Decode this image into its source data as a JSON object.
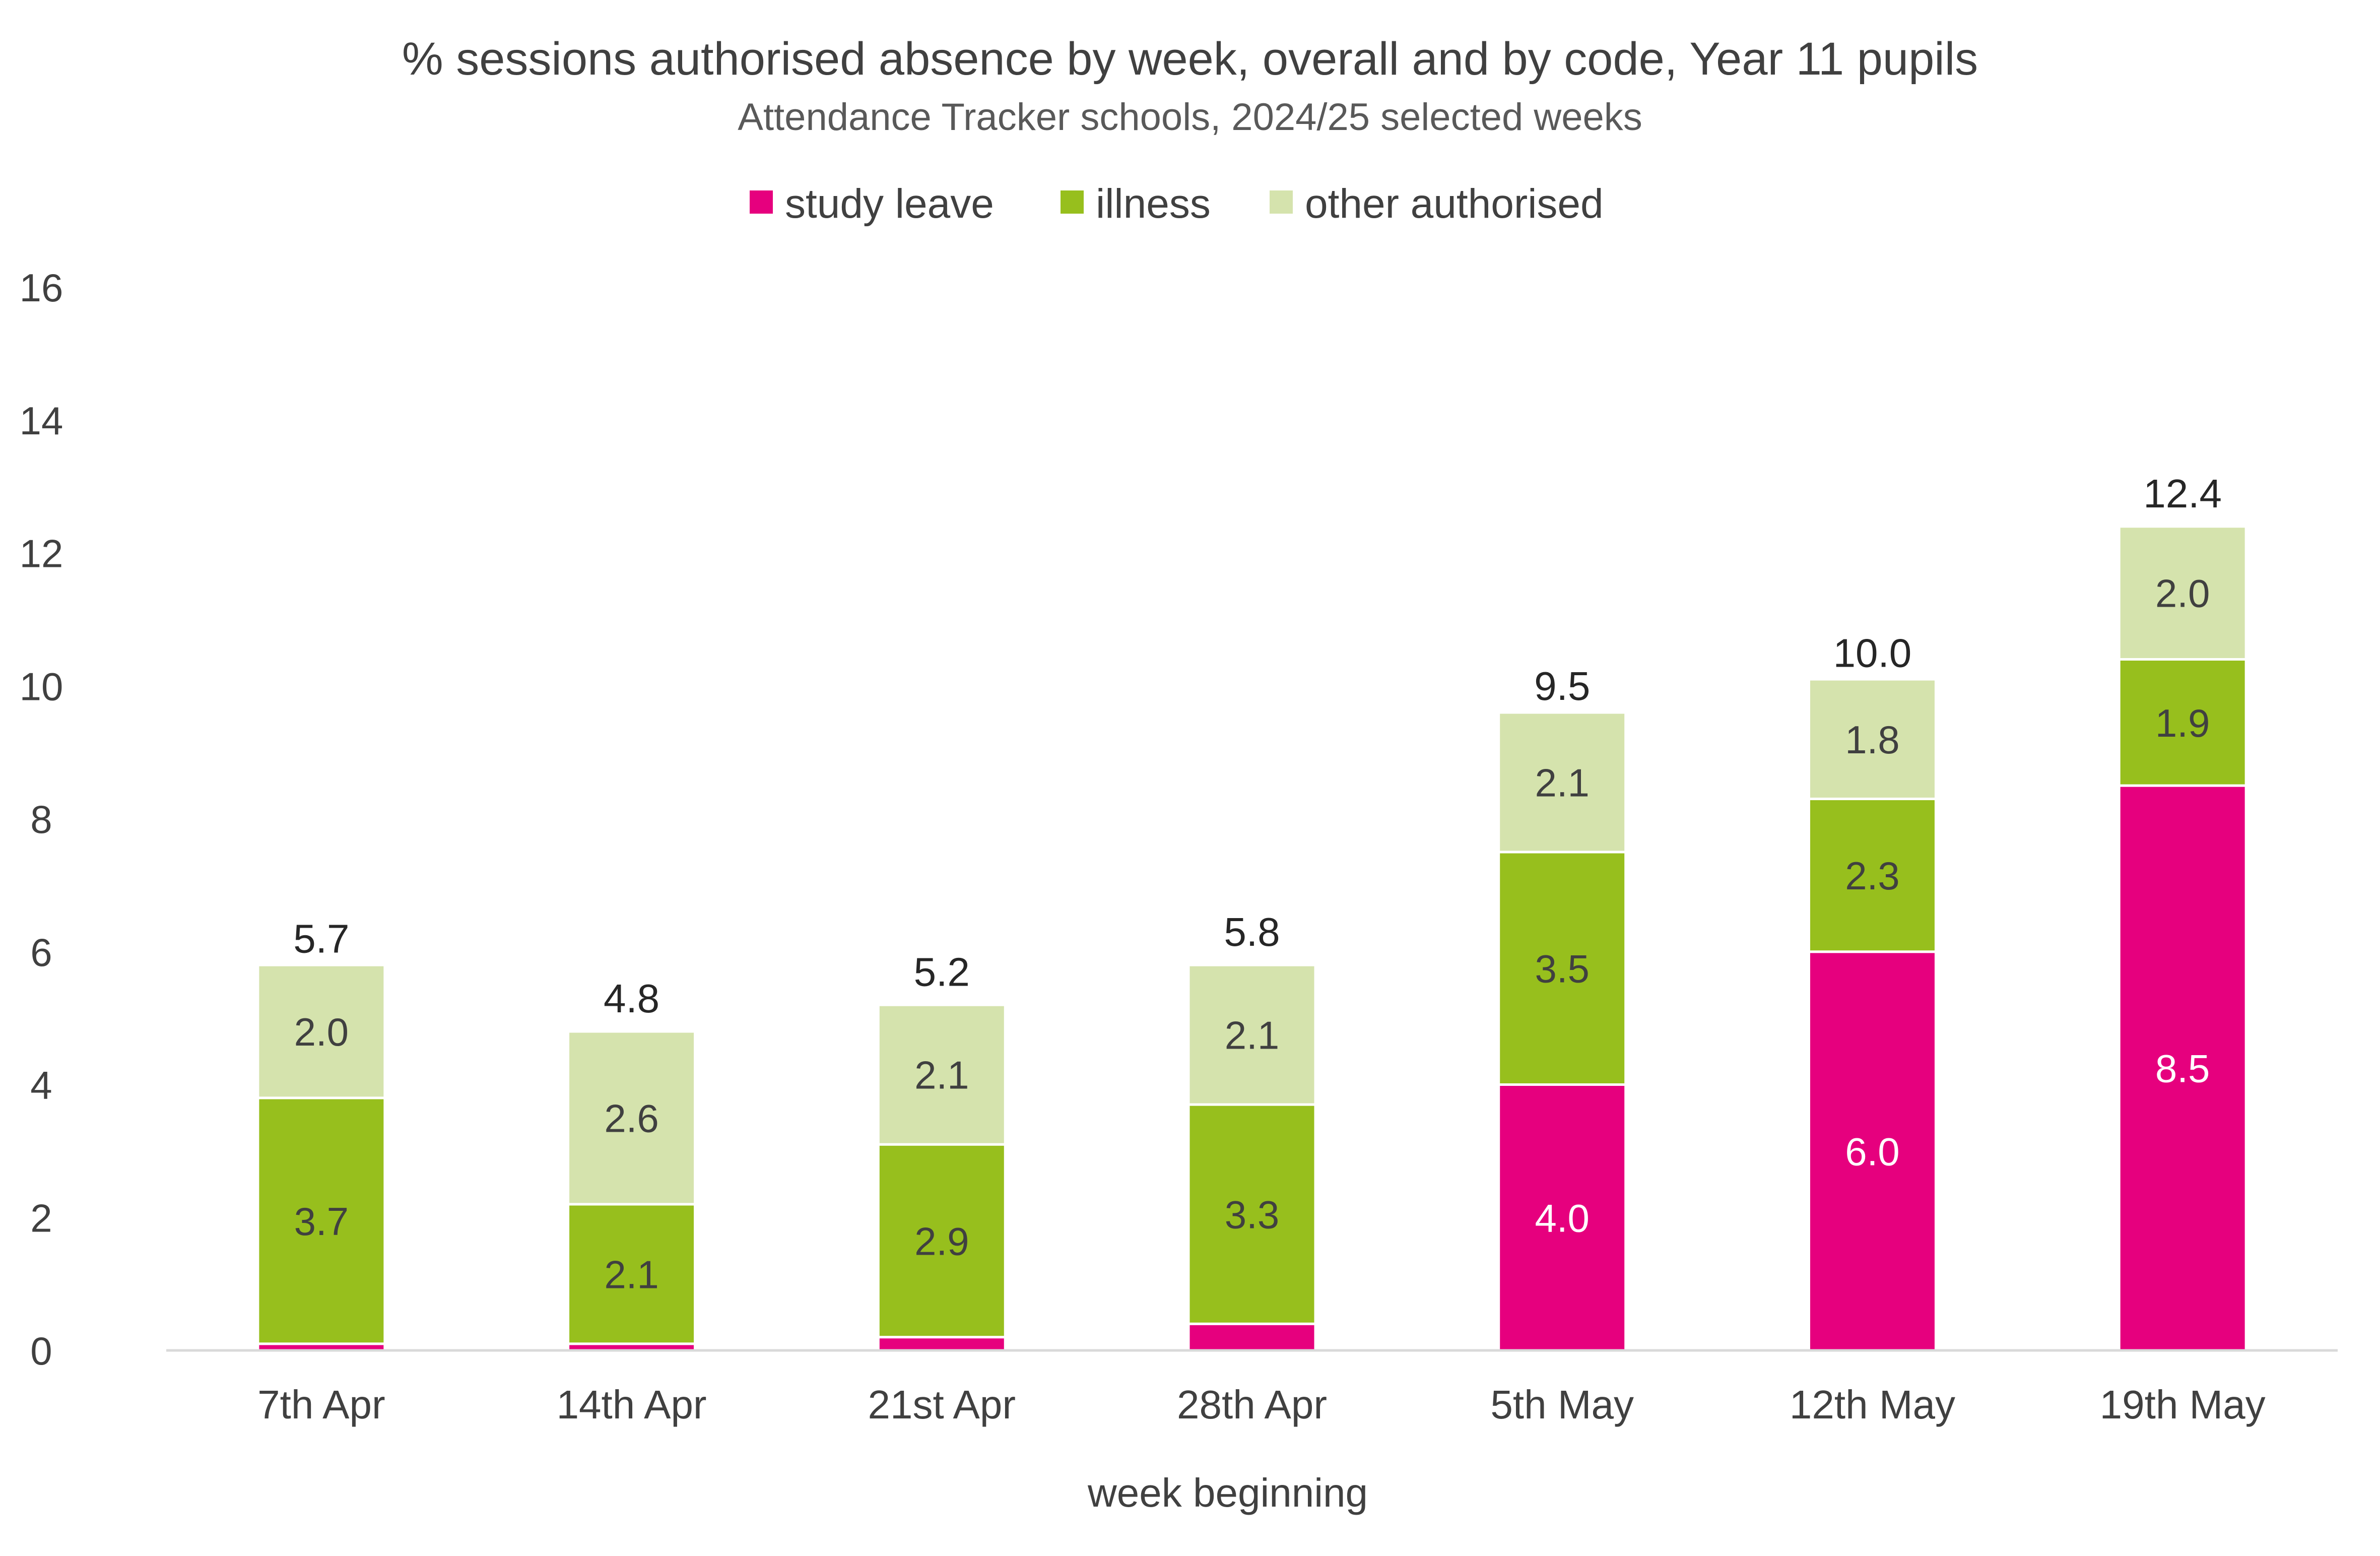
{
  "chart_data": {
    "type": "bar",
    "stacked": true,
    "title": "% sessions authorised absence by week, overall and by code, Year 11 pupils",
    "subtitle": "Attendance Tracker schools, 2024/25 selected weeks",
    "xlabel": "week beginning",
    "ylabel": "",
    "ylim": [
      0,
      16
    ],
    "yticks": [
      0,
      2,
      4,
      6,
      8,
      10,
      12,
      14,
      16
    ],
    "grid": false,
    "legend_position": "top",
    "categories": [
      "7th Apr",
      "14th Apr",
      "21st Apr",
      "28th Apr",
      "5th May",
      "12th May",
      "19th May"
    ],
    "series": [
      {
        "name": "study leave",
        "color": "#E6007E",
        "label_color": "#ffffff",
        "values": [
          0.1,
          0.1,
          0.2,
          0.4,
          4.0,
          6.0,
          8.5
        ],
        "labels": [
          "",
          "",
          "",
          "",
          "4.0",
          "6.0",
          "8.5"
        ]
      },
      {
        "name": "illness",
        "color": "#97BF1D",
        "label_color": "#404040",
        "values": [
          3.7,
          2.1,
          2.9,
          3.3,
          3.5,
          2.3,
          1.9
        ],
        "labels": [
          "3.7",
          "2.1",
          "2.9",
          "3.3",
          "3.5",
          "2.3",
          "1.9"
        ]
      },
      {
        "name": "other authorised",
        "color": "#D5E3AD",
        "label_color": "#404040",
        "values": [
          2.0,
          2.6,
          2.1,
          2.1,
          2.1,
          1.8,
          2.0
        ],
        "labels": [
          "2.0",
          "2.6",
          "2.1",
          "2.1",
          "2.1",
          "1.8",
          "2.0"
        ]
      }
    ],
    "totals": [
      5.7,
      4.8,
      5.2,
      5.8,
      9.5,
      10.0,
      12.4
    ],
    "total_labels": [
      "5.7",
      "4.8",
      "5.2",
      "5.8",
      "9.5",
      "10.0",
      "12.4"
    ]
  }
}
